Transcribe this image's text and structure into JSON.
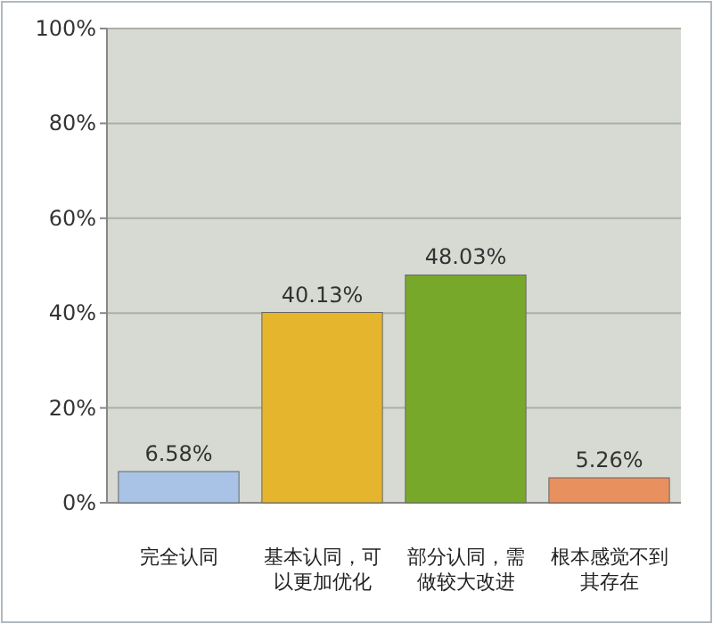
{
  "chart_data": {
    "type": "bar",
    "categories": [
      "完全认同",
      "基本认同，可以更加优化",
      "部分认同，需做较大改进",
      "根本感觉不到其存在"
    ],
    "values": [
      6.58,
      40.13,
      48.03,
      5.26
    ],
    "colors": [
      "#a9c3e6",
      "#e6b52e",
      "#78a82a",
      "#e8905e"
    ],
    "value_labels": [
      "6.58%",
      "40.13%",
      "48.03%",
      "5.26%"
    ],
    "ylim": [
      0,
      100
    ],
    "yticks": [
      {
        "value": 0,
        "label": "0%"
      },
      {
        "value": 20,
        "label": "20%"
      },
      {
        "value": 40,
        "label": "40%"
      },
      {
        "value": 60,
        "label": "60%"
      },
      {
        "value": 80,
        "label": "80%"
      },
      {
        "value": 100,
        "label": "100%"
      }
    ],
    "grid": "y"
  }
}
